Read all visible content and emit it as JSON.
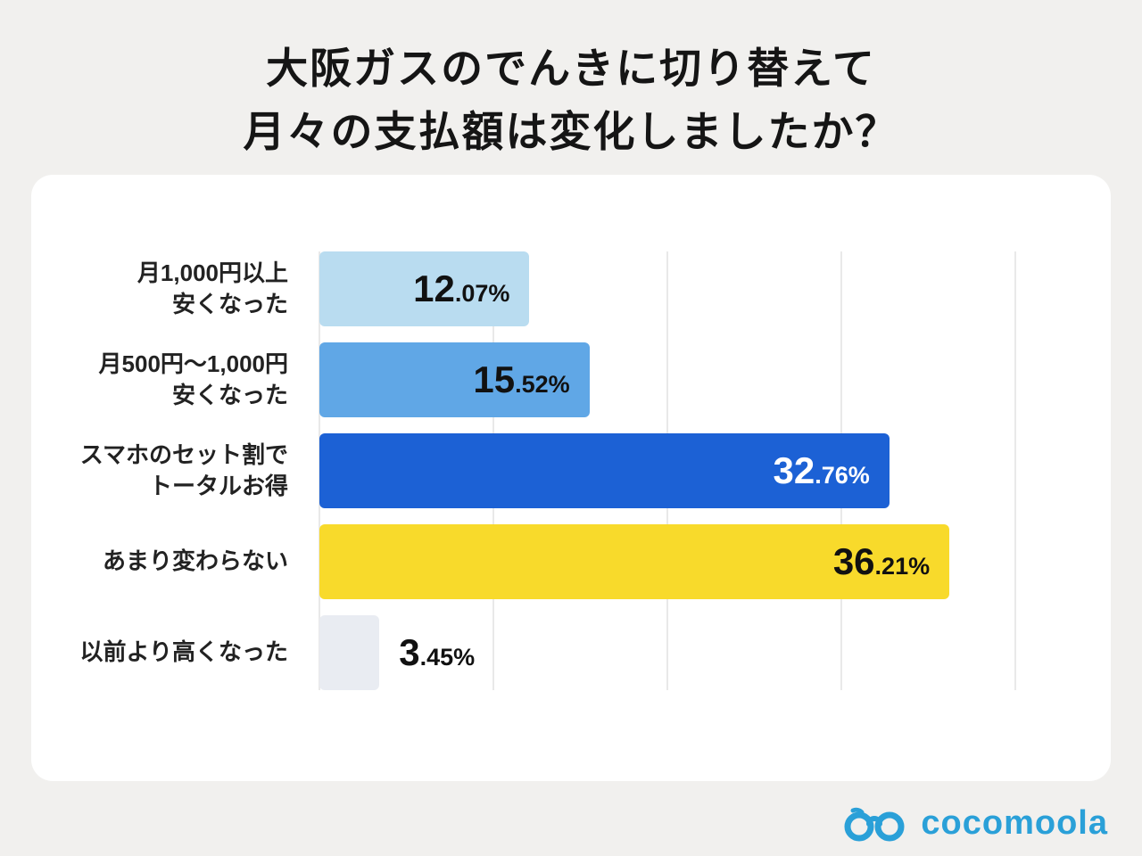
{
  "title": {
    "line1": "大阪ガスのでんきに切り替えて",
    "line2": "月々の支払額は変化しましたか？"
  },
  "chart_data": {
    "type": "bar",
    "orientation": "horizontal",
    "title": "大阪ガスのでんきに切り替えて 月々の支払額は変化しましたか？",
    "categories": [
      "月1,000円以上\n安くなった",
      "月500円〜1,000円\n安くなった",
      "スマホのセット割で\nトータルお得",
      "あまり変わらない",
      "以前より高くなった"
    ],
    "values": [
      12.07,
      15.52,
      32.76,
      36.21,
      3.45
    ],
    "unit": "%",
    "xlim": [
      0,
      40
    ],
    "gridlines": [
      0,
      10,
      20,
      30,
      40
    ],
    "grid_on": true,
    "legend": "none",
    "bar_colors": [
      "#b9dcf0",
      "#60a7e6",
      "#1c61d5",
      "#f8da2b",
      "#e9ecf2"
    ],
    "value_text_colors": [
      "#111111",
      "#111111",
      "#ffffff",
      "#111111",
      "#111111"
    ],
    "inside_label_min_value": 8
  },
  "logo": {
    "text": "cocomoola",
    "color": "#2aa0d8",
    "icon": "goggles-icon"
  }
}
